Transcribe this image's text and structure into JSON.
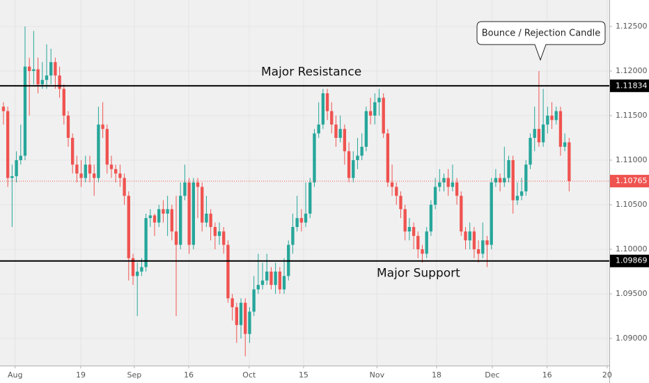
{
  "chart_data": {
    "type": "candlestick",
    "up_color": "#26a69a",
    "down_color": "#ef5350",
    "xlim": [
      -0.8,
      140.3
    ],
    "ylim": [
      1.08695,
      1.12797
    ],
    "yticks": [
      {
        "value": 1.09,
        "label": "1.09000"
      },
      {
        "value": 1.095,
        "label": "1.09500"
      },
      {
        "value": 1.1,
        "label": "1.10000"
      },
      {
        "value": 1.105,
        "label": "1.10500"
      },
      {
        "value": 1.11,
        "label": "1.11000"
      },
      {
        "value": 1.115,
        "label": "1.11500"
      },
      {
        "value": 1.12,
        "label": "1.12000"
      },
      {
        "value": 1.125,
        "label": "1.12500"
      }
    ],
    "xticks": [
      {
        "value": 2.7,
        "label": "Aug"
      },
      {
        "value": 17.9,
        "label": "19"
      },
      {
        "value": 30.3,
        "label": "Sep"
      },
      {
        "value": 42.9,
        "label": "16"
      },
      {
        "value": 56.9,
        "label": "Oct"
      },
      {
        "value": 69.5,
        "label": "15"
      },
      {
        "value": 86.5,
        "label": "Nov"
      },
      {
        "value": 100.3,
        "label": "18"
      },
      {
        "value": 113.2,
        "label": "Dec"
      },
      {
        "value": 125.9,
        "label": "16"
      },
      {
        "value": 139.8,
        "label": "20"
      }
    ],
    "open": [
      1.116,
      1.1155,
      1.108,
      1.1082,
      1.11,
      1.1105,
      1.1205,
      1.12,
      1.1202,
      1.1185,
      1.119,
      1.1195,
      1.121,
      1.1195,
      1.118,
      1.115,
      1.1125,
      1.1095,
      1.1085,
      1.108,
      1.1095,
      1.1085,
      1.108,
      1.114,
      1.1135,
      1.1095,
      1.109,
      1.1085,
      1.108,
      1.106,
      1.099,
      1.097,
      1.0975,
      1.098,
      1.1035,
      1.1038,
      1.103,
      1.1045,
      1.104,
      1.1045,
      1.102,
      1.1005,
      1.106,
      1.1075,
      1.1005,
      1.1075,
      1.107,
      1.103,
      1.104,
      1.1025,
      1.1015,
      1.102,
      1.1005,
      1.0945,
      1.0935,
      1.0915,
      1.094,
      1.0905,
      1.093,
      1.0955,
      1.096,
      1.0965,
      1.0975,
      1.096,
      1.0975,
      1.0955,
      1.097,
      1.1005,
      1.1025,
      1.1035,
      1.103,
      1.104,
      1.1075,
      1.113,
      1.114,
      1.1175,
      1.1155,
      1.114,
      1.1125,
      1.1135,
      1.111,
      1.108,
      1.11,
      1.1105,
      1.1115,
      1.1155,
      1.115,
      1.1165,
      1.117,
      1.113,
      1.1075,
      1.107,
      1.106,
      1.1045,
      1.102,
      1.1025,
      1.1015,
      1.1,
      1.0995,
      1.102,
      1.105,
      1.107,
      1.1075,
      1.108,
      1.107,
      1.1075,
      1.106,
      1.102,
      1.101,
      1.102,
      1.1,
      1.0995,
      1.101,
      1.1005,
      1.1075,
      1.108,
      1.1075,
      1.108,
      1.11,
      1.1055,
      1.106,
      1.1065,
      1.1095,
      1.1125,
      1.1135,
      1.112,
      1.114,
      1.115,
      1.1145,
      1.1155,
      1.1115,
      1.112
    ],
    "high": [
      1.1165,
      1.116,
      1.1095,
      1.111,
      1.114,
      1.125,
      1.1215,
      1.1245,
      1.1215,
      1.121,
      1.123,
      1.1225,
      1.1215,
      1.1205,
      1.1185,
      1.1155,
      1.113,
      1.1105,
      1.11,
      1.1105,
      1.1105,
      1.1095,
      1.116,
      1.1165,
      1.114,
      1.1105,
      1.1095,
      1.1095,
      1.1085,
      1.1065,
      1.0995,
      1.0985,
      1.099,
      1.104,
      1.1045,
      1.104,
      1.105,
      1.1055,
      1.106,
      1.105,
      1.106,
      1.1075,
      1.1095,
      1.108,
      1.108,
      1.108,
      1.1075,
      1.106,
      1.1045,
      1.103,
      1.103,
      1.1025,
      1.101,
      1.095,
      1.094,
      1.0945,
      1.0945,
      1.0935,
      1.097,
      1.0995,
      1.0985,
      1.0995,
      1.098,
      1.0985,
      1.098,
      1.099,
      1.101,
      1.104,
      1.106,
      1.1045,
      1.1075,
      1.108,
      1.1135,
      1.1165,
      1.118,
      1.118,
      1.1165,
      1.115,
      1.115,
      1.114,
      1.112,
      1.111,
      1.1125,
      1.113,
      1.116,
      1.117,
      1.1175,
      1.118,
      1.1175,
      1.1135,
      1.1095,
      1.1075,
      1.1065,
      1.105,
      1.1035,
      1.103,
      1.102,
      1.1005,
      1.1025,
      1.1055,
      1.108,
      1.109,
      1.1085,
      1.109,
      1.1095,
      1.108,
      1.1065,
      1.1025,
      1.103,
      1.1025,
      1.101,
      1.103,
      1.1015,
      1.108,
      1.109,
      1.1085,
      1.1115,
      1.1105,
      1.1105,
      1.1075,
      1.108,
      1.11,
      1.113,
      1.116,
      1.12,
      1.118,
      1.116,
      1.1165,
      1.116,
      1.116,
      1.113,
      1.1125
    ],
    "low": [
      1.114,
      1.107,
      1.1025,
      1.1075,
      1.1095,
      1.11,
      1.115,
      1.1185,
      1.1175,
      1.118,
      1.118,
      1.1185,
      1.118,
      1.117,
      1.114,
      1.1115,
      1.1085,
      1.1075,
      1.107,
      1.1075,
      1.1075,
      1.106,
      1.1075,
      1.1125,
      1.1085,
      1.108,
      1.1075,
      1.107,
      1.105,
      1.0965,
      1.096,
      1.0925,
      1.097,
      1.0975,
      1.1025,
      1.1015,
      1.1025,
      1.103,
      1.1015,
      1.101,
      1.0925,
      1.1,
      1.1055,
      1.0995,
      1.1,
      1.1035,
      1.102,
      1.1025,
      1.101,
      1.1,
      1.1005,
      1.0995,
      1.094,
      1.092,
      1.0895,
      1.09,
      1.088,
      1.0895,
      1.0925,
      1.095,
      1.0955,
      1.096,
      1.0955,
      1.095,
      1.095,
      1.095,
      1.0965,
      1.0995,
      1.102,
      1.102,
      1.1025,
      1.1035,
      1.107,
      1.1125,
      1.1135,
      1.1145,
      1.113,
      1.1115,
      1.112,
      1.1095,
      1.1075,
      1.1075,
      1.109,
      1.11,
      1.111,
      1.114,
      1.114,
      1.115,
      1.1125,
      1.107,
      1.106,
      1.105,
      1.1035,
      1.101,
      1.101,
      1.1,
      1.099,
      1.0985,
      1.099,
      1.1015,
      1.1045,
      1.1065,
      1.1065,
      1.106,
      1.1065,
      1.105,
      1.1015,
      1.1,
      1.1,
      1.099,
      1.0985,
      1.099,
      1.098,
      1.1,
      1.107,
      1.1065,
      1.107,
      1.1075,
      1.104,
      1.105,
      1.1055,
      1.106,
      1.109,
      1.111,
      1.1115,
      1.1115,
      1.113,
      1.1135,
      1.114,
      1.1105,
      1.111,
      1.1065
    ],
    "close": [
      1.1155,
      1.108,
      1.1082,
      1.11,
      1.1105,
      1.1205,
      1.12,
      1.1202,
      1.1185,
      1.119,
      1.1195,
      1.121,
      1.1195,
      1.118,
      1.115,
      1.1125,
      1.1095,
      1.1085,
      1.108,
      1.1095,
      1.1085,
      1.108,
      1.114,
      1.1135,
      1.1095,
      1.109,
      1.1085,
      1.108,
      1.106,
      1.099,
      1.097,
      1.0975,
      1.098,
      1.1035,
      1.1038,
      1.103,
      1.1045,
      1.104,
      1.1045,
      1.102,
      1.1005,
      1.106,
      1.1075,
      1.1005,
      1.1075,
      1.107,
      1.103,
      1.104,
      1.1025,
      1.1015,
      1.102,
      1.1005,
      1.0945,
      1.0935,
      1.0915,
      1.094,
      1.0905,
      1.093,
      1.0955,
      1.096,
      1.0965,
      1.0975,
      1.096,
      1.0975,
      1.0955,
      1.097,
      1.1005,
      1.1025,
      1.1035,
      1.103,
      1.104,
      1.1075,
      1.113,
      1.114,
      1.1175,
      1.1155,
      1.114,
      1.1125,
      1.1135,
      1.111,
      1.108,
      1.11,
      1.1105,
      1.1115,
      1.1155,
      1.115,
      1.1165,
      1.117,
      1.113,
      1.1075,
      1.107,
      1.106,
      1.1045,
      1.102,
      1.1025,
      1.1015,
      1.1,
      1.0995,
      1.102,
      1.105,
      1.107,
      1.1075,
      1.108,
      1.107,
      1.1075,
      1.106,
      1.102,
      1.101,
      1.102,
      1.1,
      1.0995,
      1.101,
      1.1005,
      1.1075,
      1.108,
      1.1075,
      1.108,
      1.11,
      1.1055,
      1.106,
      1.1065,
      1.1095,
      1.1125,
      1.1135,
      1.112,
      1.114,
      1.115,
      1.1145,
      1.1155,
      1.1115,
      1.112,
      1.10765
    ],
    "current_price": {
      "value": 1.10765,
      "color": "#ef5350"
    },
    "horizontal_lines": [
      {
        "name": "Major Resistance",
        "value": 1.11834,
        "color": "#000000"
      },
      {
        "name": "Major Support",
        "value": 1.09869,
        "color": "#000000"
      }
    ],
    "annotation": "Bounce / Rejection Candle"
  }
}
